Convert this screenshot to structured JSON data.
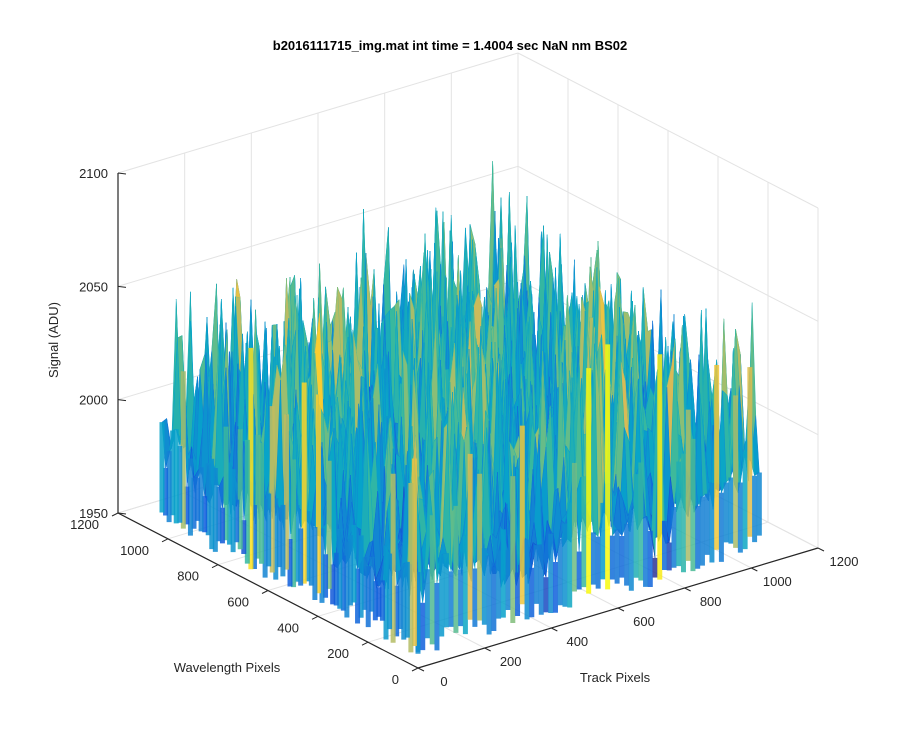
{
  "chart_data": {
    "type": "surface",
    "title": "b2016111715_img.mat int time = 1.4004 sec  NaN nm BS02",
    "xlabel": "Track Pixels",
    "ylabel": "Wavelength Pixels",
    "zlabel": "Signal (ADU)",
    "x_ticks": [
      0,
      200,
      400,
      600,
      800,
      1000,
      1200
    ],
    "y_ticks": [
      0,
      200,
      400,
      600,
      800,
      1000,
      1200
    ],
    "z_ticks": [
      1950,
      2000,
      2050,
      2100
    ],
    "xlim": [
      0,
      1200
    ],
    "ylim": [
      0,
      1200
    ],
    "zlim": [
      1950,
      2100
    ],
    "data_extent": {
      "x": [
        0,
        1024
      ],
      "y": [
        0,
        1024
      ]
    },
    "baseline_signal": 1985,
    "signal_range": [
      1955,
      2100
    ],
    "colormap": "parula",
    "grid": true,
    "view": "3d-perspective"
  }
}
